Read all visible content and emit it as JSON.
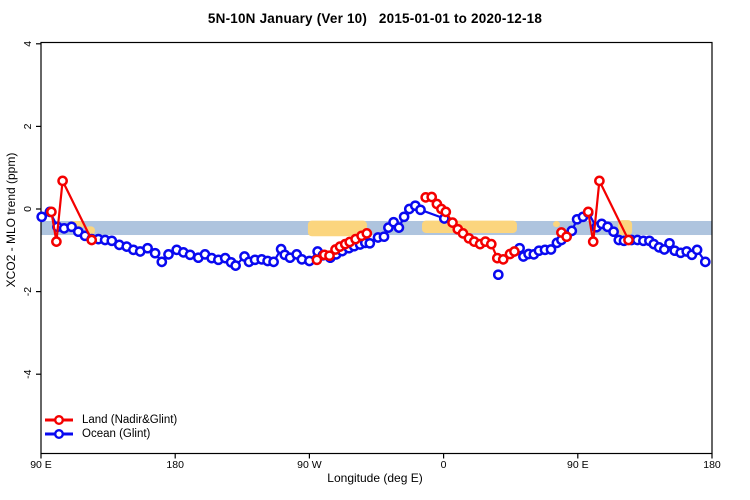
{
  "title": "5N-10N January (Ver 10)   2015-01-01 to 2020-12-18",
  "legend": {
    "items": [
      {
        "label": "Land (Nadir&Glint)",
        "color": "#f40000"
      },
      {
        "label": "Ocean (Glint)",
        "color": "#0909f0"
      }
    ]
  },
  "chart_data": {
    "type": "line",
    "title": "5N-10N January (Ver 10)   2015-01-01 to 2020-12-18",
    "xlabel": "Longitude (deg E)",
    "ylabel": "XCO2 - MLO trend (ppm)",
    "x_axis_note": "x = degrees eastward along wrapped longitude axis starting at 90E (90E -> 180 -> 90W -> 0 -> 90E -> 180); the 90E-180 segment is plotted twice",
    "x_range": [
      90,
      540
    ],
    "y_range": [
      -5.92,
      4.03
    ],
    "grid": false,
    "legend_position": "bottom-left-inside",
    "x_ticks": [
      {
        "t": 90,
        "label": "90 E"
      },
      {
        "t": 180,
        "label": "180"
      },
      {
        "t": 270,
        "label": "90 W"
      },
      {
        "t": 360,
        "label": "0"
      },
      {
        "t": 450,
        "label": "90 E"
      },
      {
        "t": 540,
        "label": "180"
      }
    ],
    "y_ticks": [
      {
        "v": 4,
        "label": "4"
      },
      {
        "v": 2,
        "label": "2"
      },
      {
        "v": 0,
        "label": "0"
      },
      {
        "v": -2,
        "label": "-2"
      },
      {
        "v": -4,
        "label": "-4"
      }
    ],
    "band": {
      "name": "reference-band",
      "color": "#aec4de",
      "v_top": -0.29,
      "v_bottom": -0.63,
      "t_start": 90,
      "t_end": 540
    },
    "patches": {
      "name": "highlight-patches",
      "color": "#fbd57e",
      "regions": [
        [
          108.8,
          118.5,
          -0.29,
          -0.5
        ],
        [
          119.5,
          126.2,
          -0.42,
          -0.63
        ],
        [
          269.0,
          308.6,
          -0.28,
          -0.66
        ],
        [
          345.5,
          409.2,
          -0.28,
          -0.58
        ],
        [
          433.4,
          438.0,
          -0.29,
          -0.44
        ],
        [
          477.0,
          486.4,
          -0.27,
          -0.64
        ]
      ]
    },
    "series": [
      {
        "name": "Land (Nadir&Glint)",
        "color": "#f40000",
        "points": [
          [
            97,
            -0.07
          ],
          [
            100.3,
            -0.79
          ],
          [
            104.5,
            0.68
          ],
          [
            124,
            -0.75
          ],
          null,
          [
            275,
            -1.23
          ],
          [
            280,
            -1.11
          ],
          [
            283.5,
            -1.13
          ],
          [
            287.5,
            -0.98
          ],
          [
            290.5,
            -0.91
          ],
          [
            294,
            -0.85
          ],
          [
            297,
            -0.8
          ],
          [
            301,
            -0.73
          ],
          [
            305,
            -0.65
          ],
          [
            308.5,
            -0.59
          ],
          null,
          [
            348,
            0.28
          ],
          [
            352,
            0.29
          ],
          [
            355.5,
            0.12
          ],
          [
            358.5,
            0.0
          ],
          [
            361.5,
            -0.07
          ],
          [
            366,
            -0.33
          ],
          [
            369.5,
            -0.49
          ],
          [
            373,
            -0.59
          ],
          [
            377,
            -0.71
          ],
          [
            380.5,
            -0.79
          ],
          [
            384.5,
            -0.85
          ],
          [
            388,
            -0.79
          ],
          [
            392,
            -0.85
          ],
          [
            396,
            -1.19
          ],
          [
            400,
            -1.22
          ],
          [
            404.5,
            -1.09
          ],
          [
            407.5,
            -1.03
          ],
          null,
          [
            439,
            -0.57
          ],
          [
            442.5,
            -0.67
          ],
          null,
          [
            457,
            -0.07
          ],
          [
            460.3,
            -0.79
          ],
          [
            464.5,
            0.68
          ],
          [
            484,
            -0.75
          ]
        ]
      },
      {
        "name": "Ocean (Glint)",
        "color": "#0909f0",
        "points": [
          [
            90.5,
            -0.19
          ],
          [
            96,
            -0.07
          ],
          [
            101,
            -0.43
          ],
          [
            105.5,
            -0.47
          ],
          [
            110.5,
            -0.43
          ],
          [
            115,
            -0.55
          ],
          [
            119.5,
            -0.65
          ],
          [
            124,
            -0.73
          ],
          [
            128.5,
            -0.73
          ],
          [
            133,
            -0.75
          ],
          [
            137.5,
            -0.77
          ],
          [
            142.5,
            -0.87
          ],
          [
            147.5,
            -0.91
          ],
          [
            152,
            -0.99
          ],
          [
            156.5,
            -1.03
          ],
          [
            161.5,
            -0.95
          ],
          [
            166.5,
            -1.07
          ],
          [
            171,
            -1.28
          ],
          [
            175.5,
            -1.1
          ],
          [
            181,
            -0.99
          ],
          [
            185.5,
            -1.05
          ],
          [
            190,
            -1.11
          ],
          [
            195.5,
            -1.18
          ],
          [
            200,
            -1.1
          ],
          [
            204.5,
            -1.19
          ],
          [
            209,
            -1.23
          ],
          [
            213.5,
            -1.19
          ],
          [
            217.5,
            -1.29
          ],
          [
            220.5,
            -1.37
          ],
          [
            226.5,
            -1.15
          ],
          [
            229.5,
            -1.28
          ],
          [
            233.5,
            -1.23
          ],
          [
            238,
            -1.22
          ],
          [
            242,
            -1.26
          ],
          [
            246,
            -1.28
          ],
          [
            251,
            -0.97
          ],
          [
            253.5,
            -1.11
          ],
          [
            257,
            -1.18
          ],
          [
            261.5,
            -1.1
          ],
          [
            265,
            -1.22
          ],
          [
            270,
            -1.26
          ],
          [
            275.5,
            -1.03
          ],
          [
            279,
            -1.12
          ],
          [
            284,
            -1.18
          ],
          [
            288,
            -1.1
          ],
          [
            292,
            -1.02
          ],
          [
            296.5,
            -0.95
          ],
          [
            300,
            -0.9
          ],
          [
            304,
            -0.86
          ],
          [
            307.5,
            -0.82
          ],
          [
            310.5,
            -0.83
          ],
          [
            316,
            -0.69
          ],
          [
            320,
            -0.67
          ],
          [
            323,
            -0.45
          ],
          [
            326.5,
            -0.32
          ],
          [
            330,
            -0.45
          ],
          [
            333.5,
            -0.19
          ],
          [
            337,
            0.0
          ],
          [
            341,
            0.08
          ],
          [
            344.5,
            -0.02
          ],
          [
            360.5,
            -0.23
          ],
          null,
          [
            396.7,
            -1.59
          ],
          null,
          [
            411,
            -0.95
          ],
          [
            413.5,
            -1.15
          ],
          [
            417,
            -1.09
          ],
          [
            420.5,
            -1.1
          ],
          [
            424,
            -1.01
          ],
          [
            428,
            -0.99
          ],
          [
            432,
            -0.98
          ],
          [
            436,
            -0.82
          ],
          [
            439,
            -0.75
          ],
          [
            442.5,
            -0.65
          ],
          [
            446,
            -0.53
          ],
          [
            449.5,
            -0.25
          ],
          [
            453.5,
            -0.19
          ],
          [
            457,
            -0.09
          ],
          [
            462.5,
            -0.44
          ],
          [
            466,
            -0.36
          ],
          [
            470,
            -0.43
          ],
          [
            474,
            -0.55
          ],
          [
            477.5,
            -0.75
          ],
          [
            481,
            -0.77
          ],
          [
            486,
            -0.75
          ],
          [
            490,
            -0.75
          ],
          [
            494,
            -0.77
          ],
          [
            498,
            -0.77
          ],
          [
            501,
            -0.85
          ],
          [
            504.5,
            -0.93
          ],
          [
            508,
            -0.98
          ],
          [
            511.5,
            -0.83
          ],
          [
            515,
            -1.01
          ],
          [
            519,
            -1.06
          ],
          [
            523,
            -1.03
          ],
          [
            526.5,
            -1.11
          ],
          [
            530,
            -0.99
          ],
          [
            535.5,
            -1.28
          ]
        ]
      }
    ]
  }
}
